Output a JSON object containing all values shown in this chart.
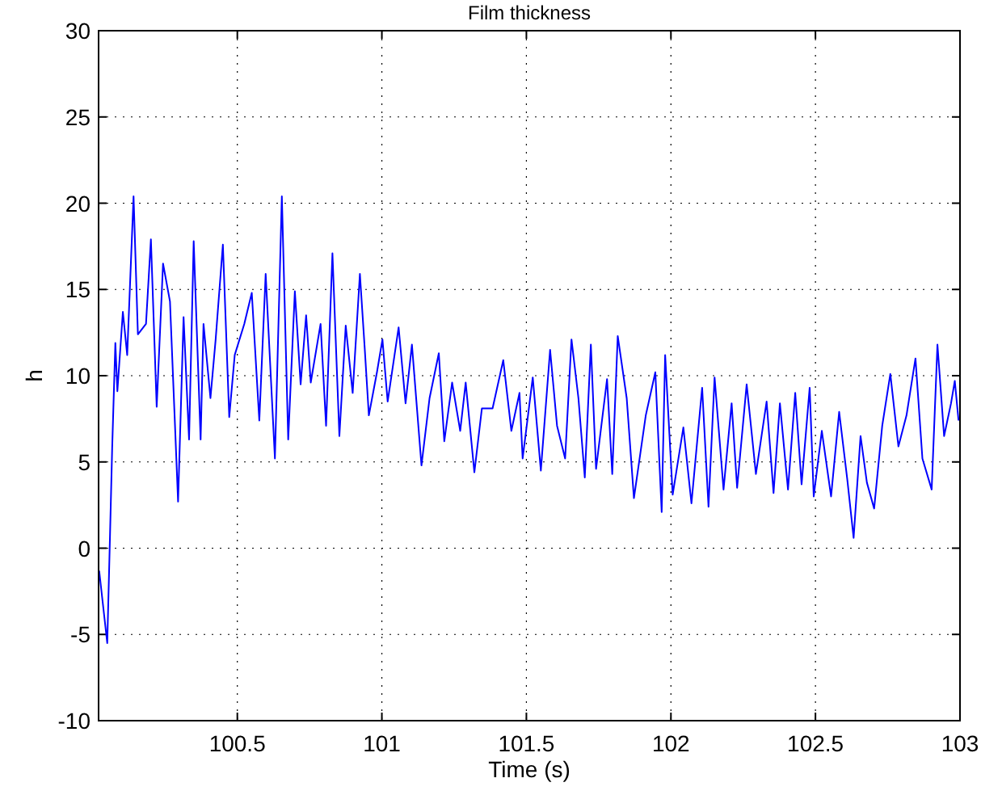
{
  "chart_data": {
    "type": "line",
    "title": "Film thickness",
    "xlabel": "Time (s)",
    "ylabel": "h",
    "xlim": [
      100.02,
      103
    ],
    "xticks": [
      100.5,
      101,
      101.5,
      102,
      102.5,
      103
    ],
    "ylim": [
      -10,
      30
    ],
    "yticks": [
      -10,
      -5,
      0,
      5,
      10,
      15,
      20,
      25,
      30
    ],
    "grid": true,
    "line_style": "solid",
    "marker": "none",
    "series": [
      {
        "color": "#0000ff",
        "x": [
          100.022,
          100.05,
          100.059,
          100.067,
          100.078,
          100.085,
          100.104,
          100.119,
          100.141,
          100.156,
          100.184,
          100.201,
          100.221,
          100.243,
          100.267,
          100.295,
          100.314,
          100.333,
          100.349,
          100.373,
          100.383,
          100.407,
          100.425,
          100.45,
          100.472,
          100.491,
          100.524,
          100.55,
          100.576,
          100.598,
          100.63,
          100.654,
          100.676,
          100.699,
          100.719,
          100.738,
          100.754,
          100.788,
          100.807,
          100.829,
          100.853,
          100.875,
          100.899,
          100.924,
          100.941,
          100.955,
          100.983,
          101.002,
          101.02,
          101.058,
          101.082,
          101.104,
          101.137,
          101.165,
          101.197,
          101.216,
          101.243,
          101.271,
          101.29,
          101.32,
          101.346,
          101.383,
          101.42,
          101.448,
          101.476,
          101.487,
          101.522,
          101.55,
          101.582,
          101.606,
          101.634,
          101.656,
          101.68,
          101.702,
          101.723,
          101.741,
          101.779,
          101.797,
          101.816,
          101.847,
          101.872,
          101.913,
          101.946,
          101.968,
          101.98,
          102.006,
          102.043,
          102.071,
          102.108,
          102.13,
          102.151,
          102.182,
          102.21,
          102.229,
          102.262,
          102.294,
          102.331,
          102.355,
          102.377,
          102.405,
          102.43,
          102.452,
          102.48,
          102.494,
          102.522,
          102.554,
          102.582,
          102.61,
          102.632,
          102.656,
          102.678,
          102.703,
          102.731,
          102.759,
          102.787,
          102.815,
          102.846,
          102.87,
          102.902,
          102.922,
          102.945,
          102.969,
          102.982,
          102.995
        ],
        "values": [
          -1.3,
          -5.5,
          0.4,
          5.8,
          11.9,
          9.1,
          13.7,
          11.2,
          20.4,
          12.4,
          13,
          17.9,
          8.2,
          16.5,
          14.3,
          2.7,
          13.4,
          6.3,
          17.8,
          6.3,
          13,
          8.7,
          12.1,
          17.6,
          7.6,
          11.2,
          13,
          14.8,
          7.4,
          15.9,
          5.2,
          20.4,
          6.3,
          14.9,
          9.5,
          13.5,
          9.6,
          13,
          7.1,
          17.1,
          6.5,
          12.9,
          9,
          15.9,
          11.5,
          7.7,
          10.2,
          12.1,
          8.5,
          12.8,
          8.4,
          11.8,
          4.8,
          8.7,
          11.3,
          6.2,
          9.6,
          6.8,
          9.6,
          4.4,
          8.1,
          8.1,
          10.9,
          6.8,
          9,
          5.2,
          9.9,
          4.5,
          11.5,
          7.1,
          5.2,
          12.1,
          8.7,
          4.1,
          11.8,
          4.6,
          9.8,
          4.3,
          12.3,
          8.7,
          2.9,
          7.7,
          10.2,
          2.1,
          11.2,
          3.1,
          7,
          2.6,
          9.3,
          2.4,
          9.9,
          3.4,
          8.4,
          3.5,
          9.5,
          4.3,
          8.5,
          3.2,
          8.4,
          3.4,
          9,
          3.7,
          9.3,
          3,
          6.8,
          3,
          7.9,
          4,
          0.6,
          6.5,
          3.8,
          2.3,
          7.1,
          10.1,
          5.9,
          7.7,
          11,
          5.2,
          3.4,
          11.8,
          6.5,
          8.4,
          9.7,
          7.4
        ]
      }
    ]
  }
}
